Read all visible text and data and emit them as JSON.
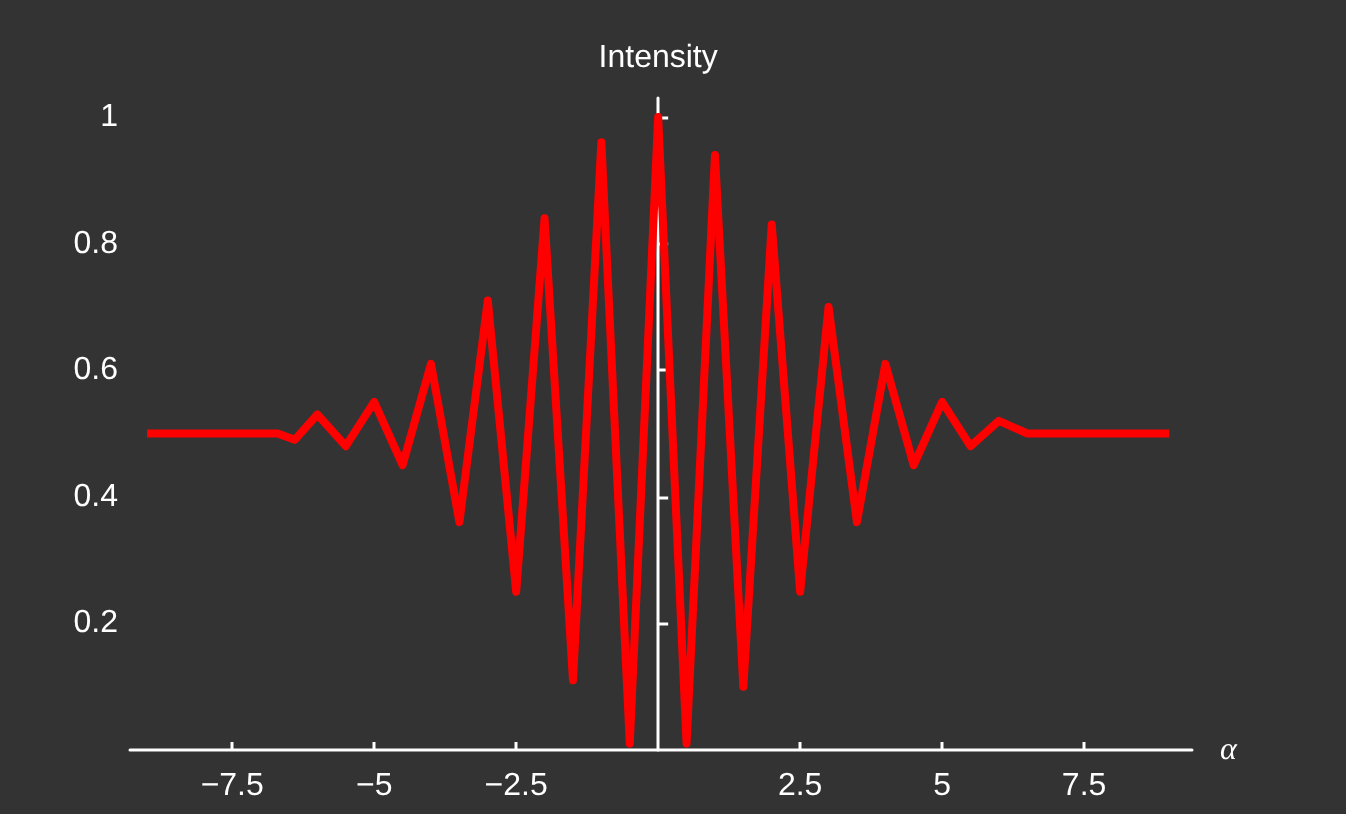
{
  "chart_data": {
    "type": "line",
    "xlabel": "α",
    "ylabel": "Intensity",
    "x": [
      -9,
      -6.7,
      -6.4,
      -6,
      -5.5,
      -5,
      -4.5,
      -4,
      -3.5,
      -3,
      -2.5,
      -2,
      -1.5,
      -1,
      -0.5,
      0,
      0.5,
      1,
      1.5,
      2,
      2.5,
      3,
      3.5,
      4,
      4.5,
      5,
      5.5,
      6,
      6.5,
      6.7,
      9
    ],
    "series": [
      {
        "color": "#ff0000",
        "values": [
          0.5,
          0.5,
          0.49,
          0.53,
          0.48,
          0.55,
          0.45,
          0.61,
          0.36,
          0.71,
          0.25,
          0.84,
          0.11,
          0.96,
          0.01,
          1.0,
          0.01,
          0.94,
          0.1,
          0.83,
          0.25,
          0.7,
          0.36,
          0.61,
          0.45,
          0.55,
          0.48,
          0.52,
          0.5,
          0.5,
          0.5
        ]
      }
    ],
    "xlim": [
      -9.3,
      9.4
    ],
    "xticks": [
      -7.5,
      -5,
      -2.5,
      2.5,
      5,
      7.5
    ],
    "ylim": [
      0,
      1.03
    ],
    "yticks": [
      0.2,
      0.4,
      0.6,
      0.8,
      1
    ],
    "grid": false,
    "marker": "none"
  }
}
